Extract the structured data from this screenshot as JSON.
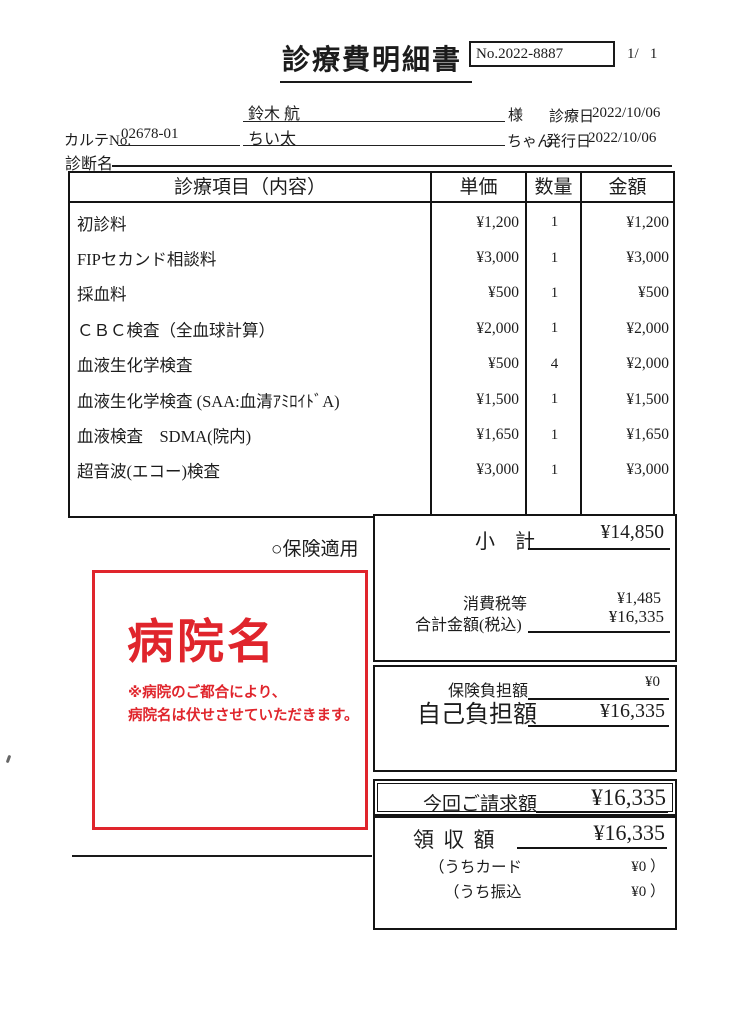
{
  "header": {
    "title": "診療費明細書",
    "doc_no": "No.2022-8887",
    "page_indicator": "1/   1"
  },
  "patient": {
    "owner_name": "鈴木 航",
    "owner_suffix": "様",
    "visit_date_label": "診療日",
    "visit_date": "2022/10/06",
    "karte_label": "カルテNo.",
    "karte_no": "02678-01",
    "pet_name": "ちい太",
    "pet_suffix": "ちゃん",
    "issue_date_label": "発行日",
    "issue_date": "2022/10/06",
    "diagnosis_label": "診断名",
    "diagnosis_value": ""
  },
  "table": {
    "headers": {
      "item": "診療項目（内容）",
      "unit_price": "単価",
      "quantity": "数量",
      "amount": "金額"
    },
    "rows": [
      {
        "item": "初診料",
        "unit_price": "¥1,200",
        "quantity": "1",
        "amount": "¥1,200"
      },
      {
        "item": "FIPセカンド相談料",
        "unit_price": "¥3,000",
        "quantity": "1",
        "amount": "¥3,000"
      },
      {
        "item": "採血料",
        "unit_price": "¥500",
        "quantity": "1",
        "amount": "¥500"
      },
      {
        "item": "ＣＢＣ検査（全血球計算）",
        "unit_price": "¥2,000",
        "quantity": "1",
        "amount": "¥2,000"
      },
      {
        "item": "血液生化学検査",
        "unit_price": "¥500",
        "quantity": "4",
        "amount": "¥2,000"
      },
      {
        "item": "血液生化学検査 (SAA:血清ｱﾐﾛｲﾄﾞA)",
        "unit_price": "¥1,500",
        "quantity": "1",
        "amount": "¥1,500"
      },
      {
        "item": "血液検査　SDMA(院内)",
        "unit_price": "¥1,650",
        "quantity": "1",
        "amount": "¥1,650"
      },
      {
        "item": "超音波(エコー)検査",
        "unit_price": "¥3,000",
        "quantity": "1",
        "amount": "¥3,000"
      }
    ]
  },
  "insurance_note": "○保険適用",
  "totals": {
    "subtotal_label": "小　計",
    "subtotal": "¥14,850",
    "tax_label": "消費税等",
    "tax": "¥1,485",
    "total_label": "合計金額(税込)",
    "total": "¥16,335",
    "insurance_burden_label": "保険負担額",
    "insurance_burden": "¥0",
    "self_pay_label": "自己負担額",
    "self_pay": "¥16,335",
    "billed_label": "今回ご請求額",
    "billed": "¥16,335",
    "received_label": "領 収 額",
    "received": "¥16,335",
    "card_label": "（うちカード",
    "card_value": "¥0 ）",
    "transfer_label": "（うち振込",
    "transfer_value": "¥0 ）"
  },
  "stamp": {
    "title": "病院名",
    "note_line1": "※病院のご都合により、",
    "note_line2": "病院名は伏せさせていただきます。",
    "color": "#e0252c"
  }
}
